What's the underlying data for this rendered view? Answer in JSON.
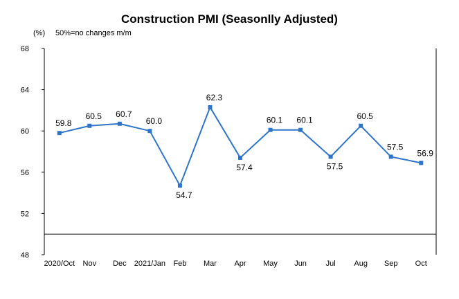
{
  "chart_data": {
    "type": "line",
    "title": "Construction PMI (Seasonlly Adjusted)",
    "y_unit": "(%)",
    "note": "50%=no changes  m/m",
    "categories": [
      "2020/Oct",
      "Nov",
      "Dec",
      "2021/Jan",
      "Feb",
      "Mar",
      "Apr",
      "May",
      "Jun",
      "Jul",
      "Aug",
      "Sep",
      "Oct"
    ],
    "series": [
      {
        "values": [
          59.8,
          60.5,
          60.7,
          60.0,
          54.7,
          62.3,
          57.4,
          60.1,
          60.1,
          57.5,
          60.5,
          57.5,
          56.9
        ]
      }
    ],
    "data_labels": [
      "59.8",
      "60.5",
      "60.7",
      "60.0",
      "54.7",
      "62.3",
      "57.4",
      "60.1",
      "60.1",
      "57.5",
      "60.5",
      "57.5",
      "56.9"
    ],
    "ylim": [
      48,
      68
    ],
    "yticks": [
      "48",
      "52",
      "56",
      "60",
      "64",
      "68"
    ],
    "line_color": "#2e75c8",
    "grid": false
  }
}
